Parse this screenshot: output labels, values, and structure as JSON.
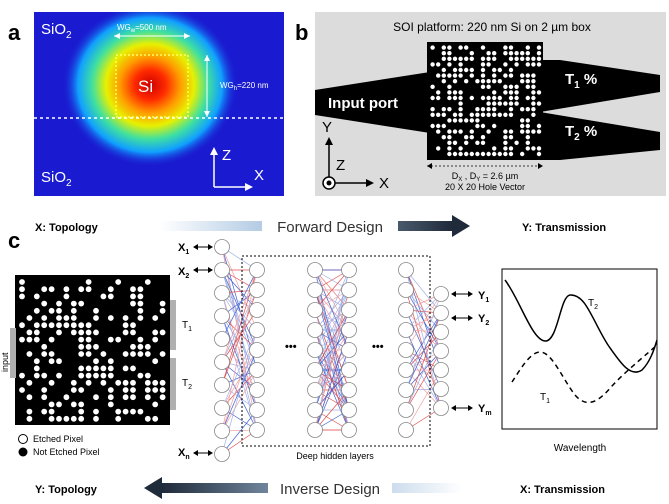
{
  "panel_a": {
    "letter": "a",
    "sio2_top": "SiO",
    "sio2_bottom": "SiO",
    "sub2": "2",
    "si": "Si",
    "wg_w_prefix": "WG",
    "wg_w_sub": "w",
    "wg_w_value": "=500 nm",
    "wg_h_prefix": "WG",
    "wg_h_sub": "h",
    "wg_h_value": "=220 nm",
    "axis_z": "Z",
    "axis_x": "X"
  },
  "panel_b": {
    "letter": "b",
    "platform": "SOI platform: 220 nm Si on 2 µm box",
    "input_port": "Input port",
    "t1": "T",
    "t1_sub": "1",
    "t2": "T",
    "t2_sub": "2",
    "percent": " %",
    "axis_y": "Y",
    "axis_z": "Z",
    "axis_x": "X",
    "dim_line1": "D",
    "dim_sub_x": "X",
    "dim_mid": " , D",
    "dim_sub_y": "Y",
    "dim_value": " = 2.6 µm",
    "dim_line2": "20 X 20 Hole Vector"
  },
  "panel_c": {
    "letter": "c",
    "forward_left": "X: Topology",
    "forward_center": "Forward Design",
    "forward_right": "Y: Transmission",
    "inverse_left": "Y: Topology",
    "inverse_center": "Inverse Design",
    "inverse_right": "X: Transmission",
    "input_label": "input",
    "t1_label": "T",
    "t2_label": "T",
    "sub1": "1",
    "sub2": "2",
    "legend_etched": "Etched Pixel",
    "legend_not_etched": "Not Etched Pixel",
    "x1": "X",
    "x2": "X",
    "xn": "X",
    "x1_sub": "1",
    "x2_sub": "2",
    "xn_sub": "n",
    "y1": "Y",
    "y2": "Y",
    "ym": "Y",
    "y1_sub": "1",
    "y2_sub": "2",
    "ym_sub": "m",
    "dots": "•••",
    "hidden_layers": "Deep hidden layers",
    "wavelength": "Wavelength",
    "curve_t2": "T",
    "curve_t1": "T"
  },
  "colors": {
    "sio2_blue": "#1a1ad0",
    "gray_panel": "#dcdcdc",
    "arrow_dark": "#1f2a3a",
    "link_red": "#e05050",
    "link_blue": "#4060d0"
  }
}
